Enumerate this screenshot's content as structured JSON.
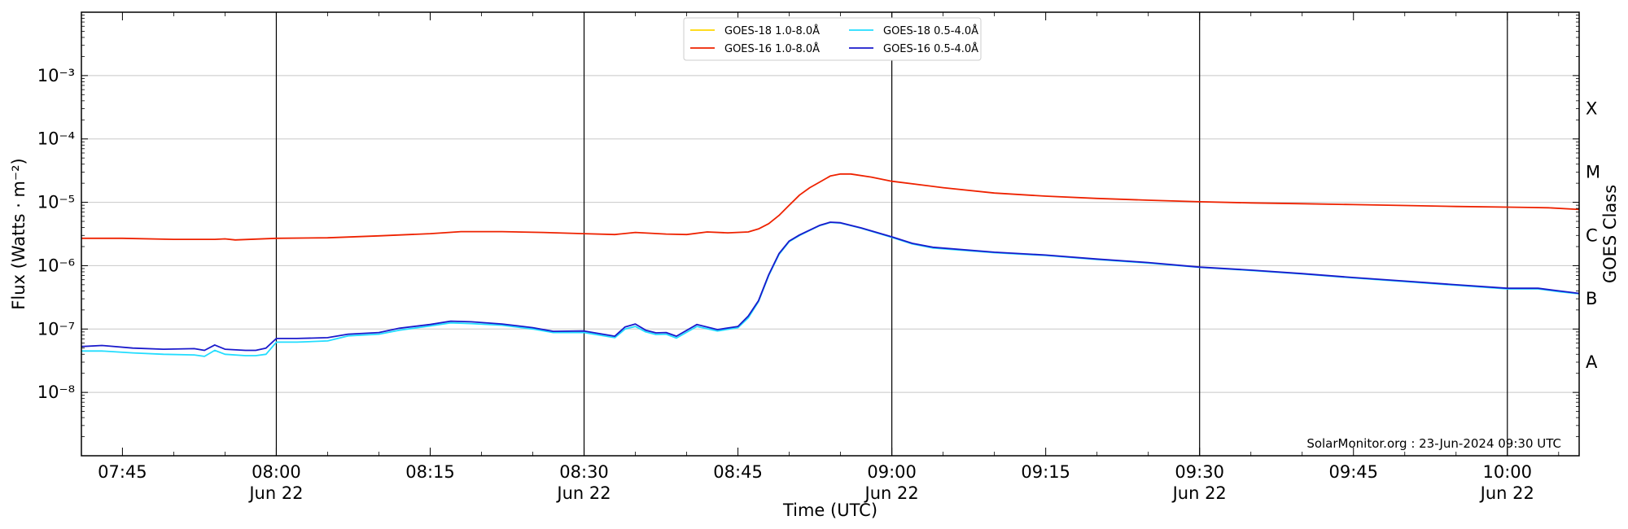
{
  "chart_data": {
    "type": "line",
    "title": "",
    "xlabel": "Time (UTC)",
    "ylabel": "Flux (Watts · m⁻²)",
    "ylabel_right": "GOES Class",
    "yscale": "log",
    "ylim": [
      1e-09,
      0.01
    ],
    "xlim_minutes": [
      "07:41",
      "10:07"
    ],
    "grid": "horizontal",
    "legend_position": "top-center",
    "credit": "SolarMonitor.org : 23-Jun-2024 09:30 UTC",
    "x_ticks": [
      {
        "t": "07:45",
        "label": "07:45",
        "date": ""
      },
      {
        "t": "08:00",
        "label": "08:00",
        "date": "Jun 22"
      },
      {
        "t": "08:15",
        "label": "08:15",
        "date": ""
      },
      {
        "t": "08:30",
        "label": "08:30",
        "date": "Jun 22"
      },
      {
        "t": "08:45",
        "label": "08:45",
        "date": ""
      },
      {
        "t": "09:00",
        "label": "09:00",
        "date": "Jun 22"
      },
      {
        "t": "09:15",
        "label": "09:15",
        "date": ""
      },
      {
        "t": "09:30",
        "label": "09:30",
        "date": "Jun 22"
      },
      {
        "t": "09:45",
        "label": "09:45",
        "date": ""
      },
      {
        "t": "10:00",
        "label": "10:00",
        "date": "Jun 22"
      }
    ],
    "vertical_lines": [
      "08:00",
      "08:30",
      "09:00",
      "09:30",
      "10:00"
    ],
    "y_ticks": [
      {
        "exp": -8,
        "label": "10⁻⁸"
      },
      {
        "exp": -7,
        "label": "10⁻⁷"
      },
      {
        "exp": -6,
        "label": "10⁻⁶"
      },
      {
        "exp": -5,
        "label": "10⁻⁵"
      },
      {
        "exp": -4,
        "label": "10⁻⁴"
      },
      {
        "exp": -3,
        "label": "10⁻³"
      }
    ],
    "goes_classes": [
      {
        "label": "A",
        "value": 3e-08
      },
      {
        "label": "B",
        "value": 3e-07
      },
      {
        "label": "C",
        "value": 3e-06
      },
      {
        "label": "M",
        "value": 3e-05
      },
      {
        "label": "X",
        "value": 0.0003
      }
    ],
    "series": [
      {
        "name": "GOES-18 1.0-8.0Å",
        "color": "#ffd700",
        "points": []
      },
      {
        "name": "GOES-16 1.0-8.0Å",
        "color": "#ee2200",
        "points": [
          [
            "07:41",
            2.7e-06
          ],
          [
            "07:45",
            2.7e-06
          ],
          [
            "07:50",
            2.6e-06
          ],
          [
            "07:54",
            2.6e-06
          ],
          [
            "07:55",
            2.65e-06
          ],
          [
            "07:56",
            2.55e-06
          ],
          [
            "08:00",
            2.7e-06
          ],
          [
            "08:05",
            2.75e-06
          ],
          [
            "08:10",
            2.95e-06
          ],
          [
            "08:15",
            3.2e-06
          ],
          [
            "08:18",
            3.45e-06
          ],
          [
            "08:22",
            3.45e-06
          ],
          [
            "08:26",
            3.35e-06
          ],
          [
            "08:30",
            3.2e-06
          ],
          [
            "08:33",
            3.1e-06
          ],
          [
            "08:35",
            3.35e-06
          ],
          [
            "08:38",
            3.15e-06
          ],
          [
            "08:40",
            3.1e-06
          ],
          [
            "08:42",
            3.4e-06
          ],
          [
            "08:44",
            3.3e-06
          ],
          [
            "08:46",
            3.4e-06
          ],
          [
            "08:47",
            3.8e-06
          ],
          [
            "08:48",
            4.6e-06
          ],
          [
            "08:49",
            6.2e-06
          ],
          [
            "08:50",
            9e-06
          ],
          [
            "08:51",
            1.3e-05
          ],
          [
            "08:52",
            1.7e-05
          ],
          [
            "08:53",
            2.1e-05
          ],
          [
            "08:54",
            2.6e-05
          ],
          [
            "08:55",
            2.8e-05
          ],
          [
            "08:56",
            2.8e-05
          ],
          [
            "08:58",
            2.5e-05
          ],
          [
            "09:00",
            2.15e-05
          ],
          [
            "09:05",
            1.7e-05
          ],
          [
            "09:10",
            1.4e-05
          ],
          [
            "09:15",
            1.25e-05
          ],
          [
            "09:20",
            1.15e-05
          ],
          [
            "09:25",
            1.08e-05
          ],
          [
            "09:30",
            1.02e-05
          ],
          [
            "09:35",
            9.8e-06
          ],
          [
            "09:40",
            9.5e-06
          ],
          [
            "09:45",
            9.2e-06
          ],
          [
            "09:50",
            8.9e-06
          ],
          [
            "09:55",
            8.6e-06
          ],
          [
            "10:00",
            8.4e-06
          ],
          [
            "10:02",
            8.3e-06
          ],
          [
            "10:04",
            8.2e-06
          ],
          [
            "10:07",
            7.7e-06
          ]
        ]
      },
      {
        "name": "GOES-18 0.5-4.0Å",
        "color": "#22ddff",
        "points": [
          [
            "07:41",
            4.5e-08
          ],
          [
            "07:43",
            4.5e-08
          ],
          [
            "07:46",
            4.2e-08
          ],
          [
            "07:49",
            4e-08
          ],
          [
            "07:52",
            3.9e-08
          ],
          [
            "07:53",
            3.7e-08
          ],
          [
            "07:54",
            4.6e-08
          ],
          [
            "07:55",
            4e-08
          ],
          [
            "07:57",
            3.8e-08
          ],
          [
            "07:58",
            3.8e-08
          ],
          [
            "07:59",
            4e-08
          ],
          [
            "08:00",
            6.2e-08
          ],
          [
            "08:02",
            6.2e-08
          ],
          [
            "08:05",
            6.5e-08
          ],
          [
            "08:07",
            7.8e-08
          ],
          [
            "08:10",
            8.3e-08
          ],
          [
            "08:12",
            9.6e-08
          ],
          [
            "08:15",
            1.12e-07
          ],
          [
            "08:17",
            1.25e-07
          ],
          [
            "08:19",
            1.22e-07
          ],
          [
            "08:22",
            1.15e-07
          ],
          [
            "08:25",
            1e-07
          ],
          [
            "08:27",
            8.8e-08
          ],
          [
            "08:30",
            8.8e-08
          ],
          [
            "08:33",
            7.3e-08
          ],
          [
            "08:34",
            1e-07
          ],
          [
            "08:35",
            1.1e-07
          ],
          [
            "08:36",
            9e-08
          ],
          [
            "08:37",
            8.2e-08
          ],
          [
            "08:38",
            8.3e-08
          ],
          [
            "08:39",
            7.2e-08
          ],
          [
            "08:41",
            1.1e-07
          ],
          [
            "08:43",
            9.3e-08
          ],
          [
            "08:45",
            1.05e-07
          ],
          [
            "08:46",
            1.5e-07
          ],
          [
            "08:47",
            2.7e-07
          ],
          [
            "08:48",
            7e-07
          ],
          [
            "08:49",
            1.5e-06
          ],
          [
            "08:50",
            2.4e-06
          ],
          [
            "08:51",
            3e-06
          ],
          [
            "08:52",
            3.6e-06
          ],
          [
            "08:53",
            4.3e-06
          ],
          [
            "08:54",
            4.8e-06
          ],
          [
            "08:55",
            4.7e-06
          ],
          [
            "08:57",
            3.9e-06
          ],
          [
            "09:00",
            2.8e-06
          ],
          [
            "09:02",
            2.2e-06
          ],
          [
            "09:04",
            1.9e-06
          ],
          [
            "09:10",
            1.6e-06
          ],
          [
            "09:15",
            1.45e-06
          ],
          [
            "09:20",
            1.25e-06
          ],
          [
            "09:25",
            1.1e-06
          ],
          [
            "09:30",
            9.4e-07
          ],
          [
            "09:35",
            8.4e-07
          ],
          [
            "09:40",
            7.4e-07
          ],
          [
            "09:45",
            6.4e-07
          ],
          [
            "09:50",
            5.6e-07
          ],
          [
            "09:55",
            4.9e-07
          ],
          [
            "10:00",
            4.3e-07
          ],
          [
            "10:03",
            4.3e-07
          ],
          [
            "10:05",
            3.9e-07
          ],
          [
            "10:07",
            3.6e-07
          ]
        ]
      },
      {
        "name": "GOES-16 0.5-4.0Å",
        "color": "#1a1acc",
        "points": [
          [
            "07:41",
            5.3e-08
          ],
          [
            "07:43",
            5.5e-08
          ],
          [
            "07:46",
            5e-08
          ],
          [
            "07:49",
            4.8e-08
          ],
          [
            "07:52",
            4.9e-08
          ],
          [
            "07:53",
            4.6e-08
          ],
          [
            "07:54",
            5.6e-08
          ],
          [
            "07:55",
            4.8e-08
          ],
          [
            "07:57",
            4.6e-08
          ],
          [
            "07:58",
            4.6e-08
          ],
          [
            "07:59",
            5e-08
          ],
          [
            "08:00",
            7.1e-08
          ],
          [
            "08:02",
            7.1e-08
          ],
          [
            "08:05",
            7.3e-08
          ],
          [
            "08:07",
            8.3e-08
          ],
          [
            "08:10",
            8.8e-08
          ],
          [
            "08:12",
            1.03e-07
          ],
          [
            "08:15",
            1.18e-07
          ],
          [
            "08:17",
            1.33e-07
          ],
          [
            "08:19",
            1.3e-07
          ],
          [
            "08:22",
            1.2e-07
          ],
          [
            "08:25",
            1.05e-07
          ],
          [
            "08:27",
            9.2e-08
          ],
          [
            "08:30",
            9.3e-08
          ],
          [
            "08:33",
            7.7e-08
          ],
          [
            "08:34",
            1.08e-07
          ],
          [
            "08:35",
            1.2e-07
          ],
          [
            "08:36",
            9.6e-08
          ],
          [
            "08:37",
            8.7e-08
          ],
          [
            "08:38",
            8.8e-08
          ],
          [
            "08:39",
            7.7e-08
          ],
          [
            "08:41",
            1.18e-07
          ],
          [
            "08:43",
            9.8e-08
          ],
          [
            "08:45",
            1.1e-07
          ],
          [
            "08:46",
            1.6e-07
          ],
          [
            "08:47",
            2.8e-07
          ],
          [
            "08:48",
            7.2e-07
          ],
          [
            "08:49",
            1.55e-06
          ],
          [
            "08:50",
            2.45e-06
          ],
          [
            "08:51",
            3.05e-06
          ],
          [
            "08:52",
            3.65e-06
          ],
          [
            "08:53",
            4.35e-06
          ],
          [
            "08:54",
            4.85e-06
          ],
          [
            "08:55",
            4.75e-06
          ],
          [
            "08:57",
            3.95e-06
          ],
          [
            "09:00",
            2.85e-06
          ],
          [
            "09:02",
            2.25e-06
          ],
          [
            "09:04",
            1.95e-06
          ],
          [
            "09:10",
            1.63e-06
          ],
          [
            "09:15",
            1.47e-06
          ],
          [
            "09:20",
            1.27e-06
          ],
          [
            "09:25",
            1.12e-06
          ],
          [
            "09:30",
            9.5e-07
          ],
          [
            "09:35",
            8.5e-07
          ],
          [
            "09:40",
            7.5e-07
          ],
          [
            "09:45",
            6.5e-07
          ],
          [
            "09:50",
            5.7e-07
          ],
          [
            "09:55",
            5e-07
          ],
          [
            "10:00",
            4.4e-07
          ],
          [
            "10:03",
            4.4e-07
          ],
          [
            "10:05",
            4e-07
          ],
          [
            "10:07",
            3.65e-07
          ]
        ]
      }
    ]
  }
}
